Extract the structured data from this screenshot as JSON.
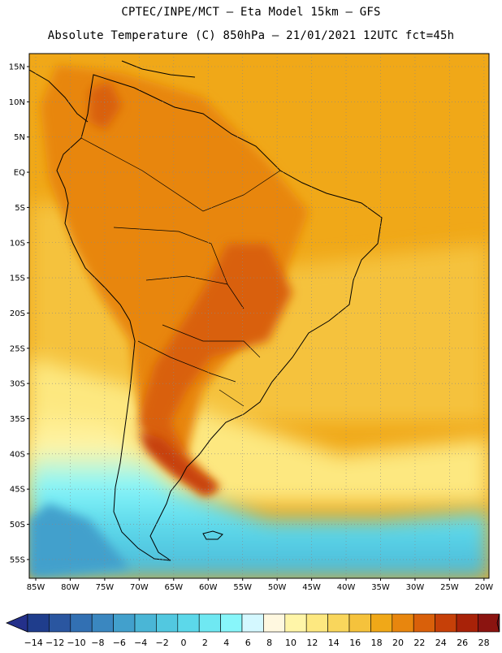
{
  "header": {
    "title_line1": "CPTEC/INPE/MCT –  Eta Model 15km – GFS",
    "title_line2": "Absolute Temperature (C) 850hPa – 21/01/2021 12UTC fct=45h"
  },
  "axes": {
    "lat_labels": [
      "15N",
      "10N",
      "5N",
      "EQ",
      "5S",
      "10S",
      "15S",
      "20S",
      "25S",
      "30S",
      "35S",
      "40S",
      "45S",
      "50S",
      "55S"
    ],
    "lon_labels": [
      "85W",
      "80W",
      "75W",
      "70W",
      "65W",
      "60W",
      "55W",
      "50W",
      "45W",
      "40W",
      "35W",
      "30W",
      "25W",
      "20W"
    ]
  },
  "colorbar": {
    "labels": [
      "-14",
      "-12",
      "-10",
      "-8",
      "-6",
      "-4",
      "-2",
      "0",
      "2",
      "4",
      "6",
      "8",
      "10",
      "12",
      "14",
      "16",
      "18",
      "20",
      "22",
      "24",
      "26",
      "28"
    ],
    "colors": [
      "#1f3d8c",
      "#2a56a0",
      "#3270b3",
      "#3a87c0",
      "#42a0cc",
      "#4ab6d6",
      "#52c8e0",
      "#5cd8ea",
      "#6fe8f2",
      "#88f6fa",
      "#d4f8ff",
      "#fff8e0",
      "#fff5a8",
      "#fde880",
      "#f9d65c",
      "#f5c23c",
      "#f0a818",
      "#e8860e",
      "#d9600a",
      "#c64008",
      "#a82208",
      "#8b1410"
    ],
    "under_color": "#24308a",
    "over_color": "#7a0f1a"
  },
  "colors": {
    "ocean_warm": "#f0a818",
    "ocean_mid": "#f5c23c",
    "land": "#e8a020",
    "hot": "#d9600a",
    "cold": "#52c8e0",
    "coast": "#000000"
  }
}
